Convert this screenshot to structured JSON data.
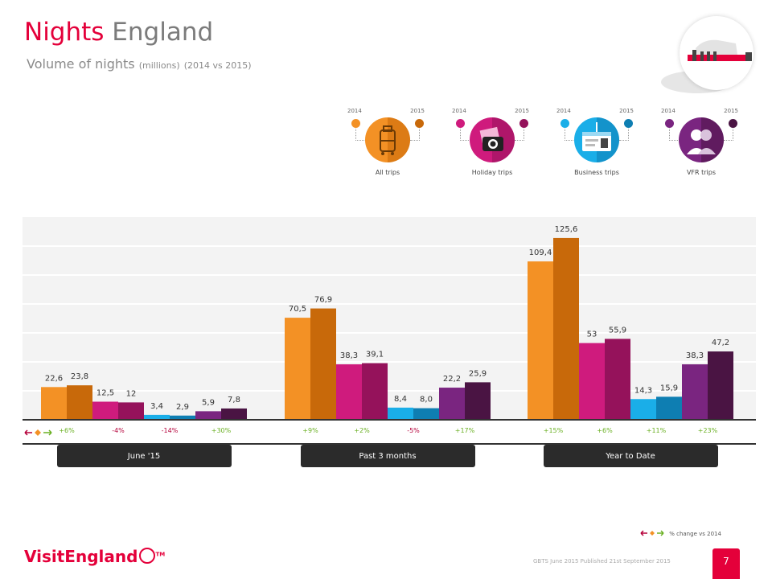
{
  "header": {
    "title_main": "Nights",
    "title_region": "England",
    "subtitle_main": "Volume of nights",
    "subtitle_units": "(millions)",
    "subtitle_period": "(2014 vs 2015)"
  },
  "legend": {
    "items": [
      {
        "label": "All trips",
        "year1": "2014",
        "year2": "2015",
        "color1": "#f39125",
        "color2": "#c8690a",
        "icon": "suitcase-icon"
      },
      {
        "label": "Holiday trips",
        "year1": "2014",
        "year2": "2015",
        "color1": "#cf1b7d",
        "color2": "#95125b",
        "icon": "camera-icon"
      },
      {
        "label": "Business trips",
        "year1": "2014",
        "year2": "2015",
        "color1": "#1aaee8",
        "color2": "#0e7eb2",
        "icon": "id-card-icon"
      },
      {
        "label": "VFR trips",
        "year1": "2014",
        "year2": "2015",
        "color1": "#7a2580",
        "color2": "#4a1443",
        "icon": "people-icon"
      }
    ]
  },
  "chart_data": {
    "type": "bar",
    "title": "Volume of nights (millions) (2014 vs 2015)",
    "groups": [
      "June '15",
      "Past 3 months",
      "Year to Date"
    ],
    "subcategories": [
      "All trips",
      "Holiday trips",
      "Business trips",
      "VFR trips"
    ],
    "series": [
      {
        "name": "2014",
        "values": [
          [
            22.6,
            12.5,
            3.4,
            5.9
          ],
          [
            70.5,
            38.3,
            8.4,
            22.2
          ],
          [
            109.4,
            53,
            14.3,
            38.3
          ]
        ]
      },
      {
        "name": "2015",
        "values": [
          [
            23.8,
            12,
            2.9,
            7.8
          ],
          [
            76.9,
            39.1,
            8.0,
            25.9
          ],
          [
            125.6,
            55.9,
            15.9,
            47.2
          ]
        ]
      }
    ],
    "value_labels": {
      "2014": [
        [
          "22,6",
          "12,5",
          "3,4",
          "5,9"
        ],
        [
          "70,5",
          "38,3",
          "8,4",
          "22,2"
        ],
        [
          "109,4",
          "53",
          "14,3",
          "38,3"
        ]
      ],
      "2015": [
        [
          "23,8",
          "12",
          "2,9",
          "7,8"
        ],
        [
          "76,9",
          "39,1",
          "8,0",
          "25,9"
        ],
        [
          "125,6",
          "55,9",
          "15,9",
          "47,2"
        ]
      ]
    },
    "pct_change": [
      [
        "+6%",
        "-4%",
        "-14%",
        "+30%"
      ],
      [
        "+9%",
        "+2%",
        "-5%",
        "+17%"
      ],
      [
        "+15%",
        "+6%",
        "+11%",
        "+23%"
      ]
    ],
    "ylim": [
      0,
      140
    ],
    "grid": true,
    "colors_2014": [
      "#f39125",
      "#cf1b7d",
      "#1aaee8",
      "#7a2580"
    ],
    "colors_2015": [
      "#c8690a",
      "#95125b",
      "#0e7eb2",
      "#4a1443"
    ],
    "pct_positive_color": "#6ab023",
    "pct_negative_color": "#b5003a"
  },
  "footer": {
    "logo_text": "VisitEngland",
    "logo_tm": "TM",
    "source": "GBTS June 2015 Published 21st September 2015",
    "page_number": "7",
    "pct_legend": "% change vs 2014"
  }
}
